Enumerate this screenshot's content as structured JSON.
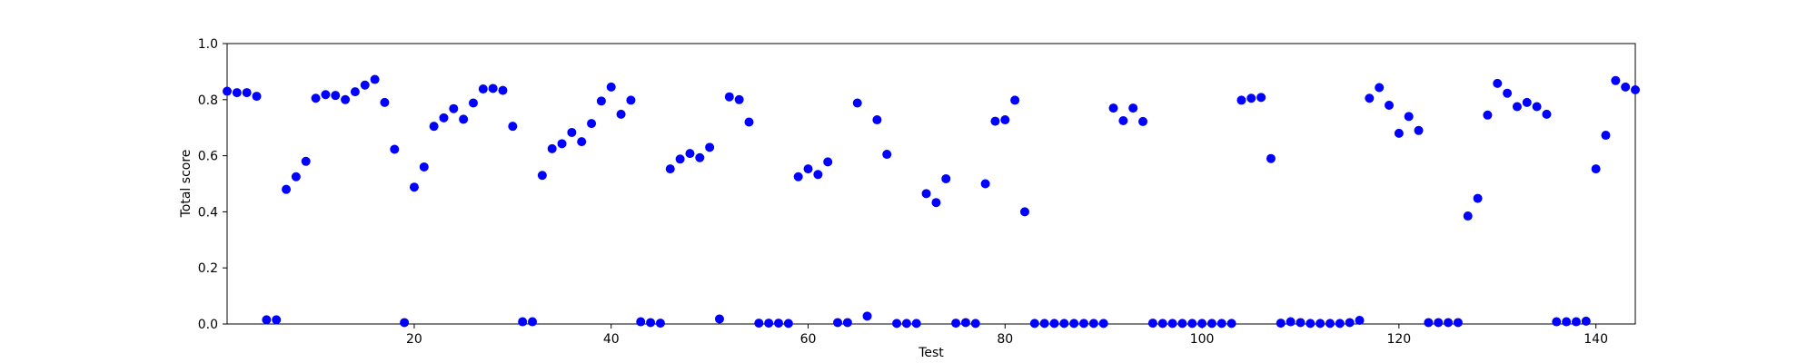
{
  "chart_data": {
    "type": "scatter",
    "title": "",
    "xlabel": "Test",
    "ylabel": "Total score",
    "xlim": [
      1,
      144
    ],
    "ylim": [
      0.0,
      1.0
    ],
    "xticks": [
      20,
      40,
      60,
      80,
      100,
      120,
      140
    ],
    "xtick_labels": [
      "20",
      "40",
      "60",
      "80",
      "100",
      "120",
      "140"
    ],
    "yticks": [
      0.0,
      0.2,
      0.4,
      0.6,
      0.8,
      1.0
    ],
    "ytick_labels": [
      "0.0",
      "0.2",
      "0.4",
      "0.6",
      "0.8",
      "1.0"
    ],
    "grid": false,
    "legend": "none",
    "marker_color": "#0000ff",
    "series": [
      {
        "x": [
          1,
          2,
          3,
          4,
          5,
          6,
          7,
          8,
          9,
          10,
          11,
          12,
          13,
          14,
          15,
          16,
          17,
          18,
          19,
          20,
          21,
          22,
          23,
          24,
          25,
          26,
          27,
          28,
          29,
          30,
          31,
          32,
          33,
          34,
          35,
          36,
          37,
          38,
          39,
          40,
          41,
          42,
          43,
          44,
          45,
          46,
          47,
          48,
          49,
          50,
          51,
          52,
          53,
          54,
          55,
          56,
          57,
          58,
          59,
          60,
          61,
          62,
          63,
          64,
          65,
          66,
          67,
          68,
          69,
          70,
          71,
          72,
          73,
          74,
          75,
          76,
          77,
          78,
          79,
          80,
          81,
          82,
          83,
          84,
          85,
          86,
          87,
          88,
          89,
          90,
          91,
          92,
          93,
          94,
          95,
          96,
          97,
          98,
          99,
          100,
          101,
          102,
          103,
          104,
          105,
          106,
          107,
          108,
          109,
          110,
          111,
          112,
          113,
          114,
          115,
          116,
          117,
          118,
          119,
          120,
          121,
          122,
          123,
          124,
          125,
          126,
          127,
          128,
          129,
          130,
          131,
          132,
          133,
          134,
          135,
          136,
          137,
          138,
          139,
          140,
          141,
          142,
          143,
          144
        ],
        "y": [
          0.83,
          0.825,
          0.825,
          0.812,
          0.015,
          0.015,
          0.48,
          0.525,
          0.58,
          0.805,
          0.818,
          0.815,
          0.8,
          0.828,
          0.852,
          0.872,
          0.79,
          0.623,
          0.005,
          0.488,
          0.56,
          0.705,
          0.735,
          0.768,
          0.73,
          0.788,
          0.838,
          0.84,
          0.833,
          0.705,
          0.008,
          0.008,
          0.53,
          0.625,
          0.643,
          0.683,
          0.65,
          0.715,
          0.795,
          0.845,
          0.748,
          0.798,
          0.008,
          0.005,
          0.003,
          0.553,
          0.588,
          0.608,
          0.593,
          0.63,
          0.018,
          0.81,
          0.8,
          0.72,
          0.003,
          0.003,
          0.003,
          0.002,
          0.525,
          0.553,
          0.533,
          0.578,
          0.005,
          0.005,
          0.788,
          0.028,
          0.728,
          0.605,
          0.002,
          0.002,
          0.002,
          0.465,
          0.433,
          0.518,
          0.003,
          0.005,
          0.002,
          0.5,
          0.723,
          0.728,
          0.798,
          0.4,
          0.002,
          0.002,
          0.002,
          0.002,
          0.002,
          0.002,
          0.002,
          0.002,
          0.77,
          0.725,
          0.77,
          0.722,
          0.003,
          0.002,
          0.002,
          0.002,
          0.002,
          0.002,
          0.002,
          0.002,
          0.002,
          0.798,
          0.805,
          0.808,
          0.59,
          0.003,
          0.008,
          0.005,
          0.002,
          0.002,
          0.002,
          0.002,
          0.005,
          0.013,
          0.805,
          0.843,
          0.78,
          0.68,
          0.74,
          0.69,
          0.005,
          0.005,
          0.005,
          0.005,
          0.385,
          0.448,
          0.745,
          0.858,
          0.823,
          0.775,
          0.79,
          0.775,
          0.748,
          0.008,
          0.008,
          0.008,
          0.01,
          0.553,
          0.673,
          0.868,
          0.845,
          0.835
        ]
      }
    ]
  }
}
